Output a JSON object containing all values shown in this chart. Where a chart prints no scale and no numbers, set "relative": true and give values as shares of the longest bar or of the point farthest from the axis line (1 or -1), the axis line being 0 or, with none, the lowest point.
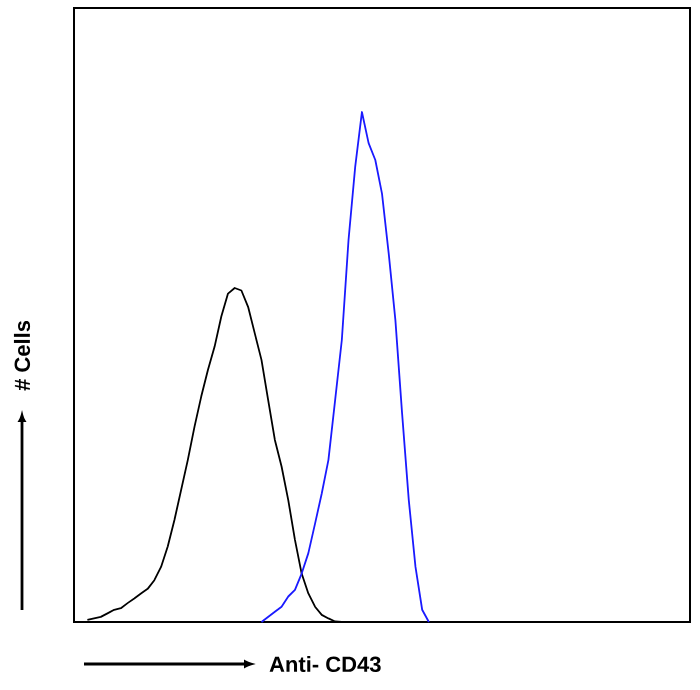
{
  "chart_data": {
    "type": "line",
    "relative": true,
    "xlabel": "Anti- CD43",
    "ylabel": "# Cells",
    "categories": [
      null,
      null,
      null,
      null,
      null,
      null,
      null,
      null,
      null,
      null,
      null,
      null,
      null,
      null,
      null,
      null,
      null,
      null,
      null,
      null,
      null,
      null,
      null,
      null,
      null,
      null,
      null,
      null,
      null,
      null,
      null,
      null,
      null,
      null,
      null,
      null,
      null,
      null,
      null,
      null,
      null,
      null,
      null,
      null,
      null,
      null,
      null,
      null,
      null,
      null,
      null,
      null,
      null,
      null,
      null,
      null,
      null,
      null,
      null,
      null,
      null,
      null,
      null,
      null,
      null,
      null,
      null,
      null,
      null,
      null,
      null,
      null,
      null,
      null,
      null,
      null,
      null,
      null,
      null,
      null,
      null,
      null,
      null,
      null,
      null,
      null,
      null,
      null,
      null,
      null,
      null,
      null,
      null
    ],
    "series": [
      {
        "color": "#000000",
        "values": [
          null,
          null,
          0.004,
          0.007,
          0.01,
          0.017,
          0.024,
          0.027,
          0.037,
          0.046,
          0.056,
          0.065,
          0.082,
          0.108,
          0.148,
          0.2,
          0.259,
          0.318,
          0.383,
          0.442,
          0.494,
          0.54,
          0.599,
          0.644,
          0.655,
          0.65,
          0.618,
          0.566,
          0.514,
          0.435,
          0.357,
          0.305,
          0.239,
          0.161,
          0.095,
          0.056,
          0.03,
          0.014,
          0.007,
          0.001,
          0,
          null,
          null,
          null,
          null,
          null,
          null,
          null,
          null,
          null,
          null,
          null,
          null,
          null,
          null,
          null,
          null,
          null,
          null,
          null,
          null,
          null,
          null,
          null,
          null,
          null,
          null,
          null,
          null,
          null,
          null,
          null,
          null,
          null,
          null,
          null,
          null,
          null,
          null,
          null,
          null,
          null,
          null,
          null,
          null,
          null,
          null,
          null,
          null,
          null,
          null,
          null,
          null
        ]
      },
      {
        "color": "#1a1aff",
        "values": [
          null,
          null,
          null,
          null,
          null,
          null,
          null,
          null,
          null,
          null,
          null,
          null,
          null,
          null,
          null,
          null,
          null,
          null,
          null,
          null,
          null,
          null,
          null,
          null,
          null,
          null,
          null,
          null,
          0,
          0.01,
          0.02,
          0.03,
          0.05,
          0.063,
          0.095,
          0.135,
          0.193,
          0.252,
          0.318,
          0.435,
          0.553,
          0.749,
          0.893,
          1,
          0.939,
          0.906,
          0.84,
          0.723,
          0.592,
          0.409,
          0.239,
          0.108,
          0.024,
          0,
          null,
          null,
          null,
          null,
          null,
          null,
          null,
          null,
          null,
          null,
          null,
          null,
          null,
          null,
          null,
          null,
          null,
          null,
          null,
          null,
          null,
          null,
          null,
          null,
          null,
          null,
          null,
          null,
          null,
          null,
          null,
          null,
          null,
          null,
          null,
          null,
          null,
          null,
          null
        ]
      }
    ]
  }
}
